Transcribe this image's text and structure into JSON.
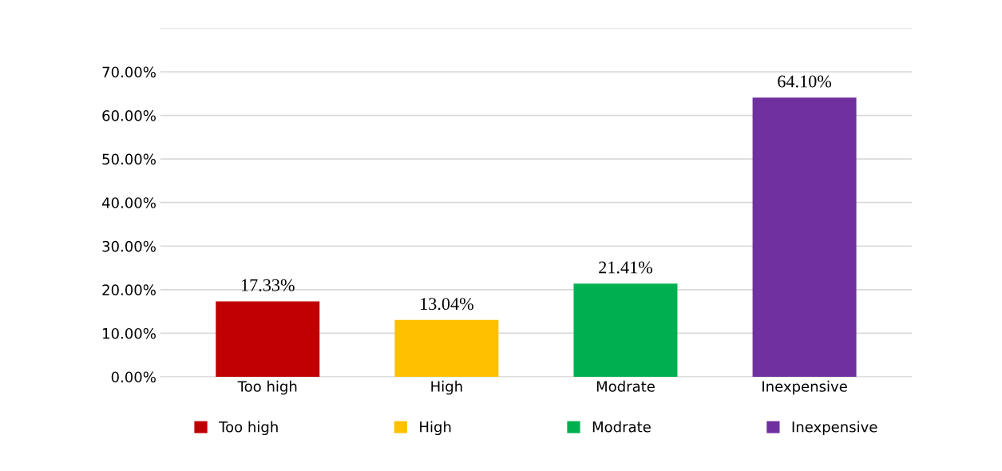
{
  "chart_data": {
    "type": "bar",
    "categories": [
      "Too high",
      "High",
      "Modrate",
      "Inexpensive"
    ],
    "series": [
      {
        "name": "Too high",
        "color": "#c00000",
        "values": [
          17.33,
          null,
          null,
          null
        ],
        "value_labels": [
          "17.33%",
          null,
          null,
          null
        ]
      },
      {
        "name": "High",
        "color": "#ffc000",
        "values": [
          null,
          13.04,
          null,
          null
        ],
        "value_labels": [
          null,
          "13.04%",
          null,
          null
        ]
      },
      {
        "name": "Modrate",
        "color": "#00b050",
        "values": [
          null,
          null,
          21.41,
          null
        ],
        "value_labels": [
          null,
          null,
          "21.41%",
          null
        ]
      },
      {
        "name": "Inexpensive",
        "color": "#7030a0",
        "values": [
          null,
          null,
          null,
          64.1
        ],
        "value_labels": [
          null,
          null,
          null,
          "64.10%"
        ]
      }
    ],
    "ylim": [
      0,
      80
    ],
    "yticks": [
      {
        "value": 0,
        "label": "0.00%"
      },
      {
        "value": 10,
        "label": "10.00%"
      },
      {
        "value": 20,
        "label": "20.00%"
      },
      {
        "value": 30,
        "label": "30.00%"
      },
      {
        "value": 40,
        "label": "40.00%"
      },
      {
        "value": 50,
        "label": "50.00%"
      },
      {
        "value": 60,
        "label": "60.00%"
      },
      {
        "value": 70,
        "label": "70.00%"
      },
      {
        "value": 80,
        "label": null
      }
    ],
    "grid": "y",
    "legend": "bottom"
  }
}
